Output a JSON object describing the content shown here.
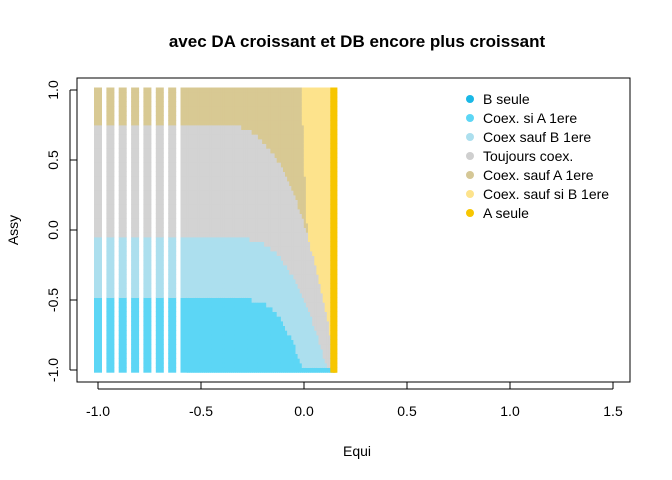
{
  "chart_data": {
    "type": "scatter",
    "title": "avec DA croissant et DB encore plus croissant",
    "xlabel": "Equi",
    "ylabel": "Assy",
    "xlim": [
      -1.0,
      1.5
    ],
    "ylim": [
      -1.0,
      1.0
    ],
    "x_ticks": [
      "-1.0",
      "-0.5",
      "0.0",
      "0.5",
      "1.0",
      "1.5"
    ],
    "y_ticks": [
      "-1.0",
      "-0.5",
      "0.0",
      "0.5",
      "1.0"
    ],
    "legend_position": "top-right",
    "grid": false,
    "region_colors": {
      "B seule": "#5cd6f5",
      "Coex. si A 1ere": "#5cd6f5",
      "Coex sauf B 1ere": "#acdfee",
      "Toujours coex.": "#d3d3d3",
      "Coex. sauf A 1ere": "#d8c993",
      "Coex. sauf si B 1ere": "#fde38c",
      "A seule": "#f7c600"
    },
    "legend": [
      {
        "label": "B seule",
        "color": "#1ab8e6"
      },
      {
        "label": "Coex. si A 1ere",
        "color": "#5cd6f5"
      },
      {
        "label": "Coex sauf B 1ere",
        "color": "#acdfee"
      },
      {
        "label": "Toujours coex.",
        "color": "#cfcfcf"
      },
      {
        "label": "Coex. sauf A 1ere",
        "color": "#d5c796"
      },
      {
        "label": "Coex. sauf si B 1ere",
        "color": "#fde38c"
      },
      {
        "label": "A seule",
        "color": "#f7c600"
      }
    ],
    "sparse_columns_x": [
      -1.0,
      -0.94,
      -0.88,
      -0.82,
      -0.76,
      -0.7,
      -0.64,
      -0.58
    ],
    "dense_region_x": [
      -0.56,
      0.15
    ],
    "a_seule_x": [
      0.14,
      0.16
    ],
    "boundaries": {
      "blue_top_y": -0.5,
      "lightblue_top_y": -0.05,
      "grey_top_y": 0.76
    }
  }
}
